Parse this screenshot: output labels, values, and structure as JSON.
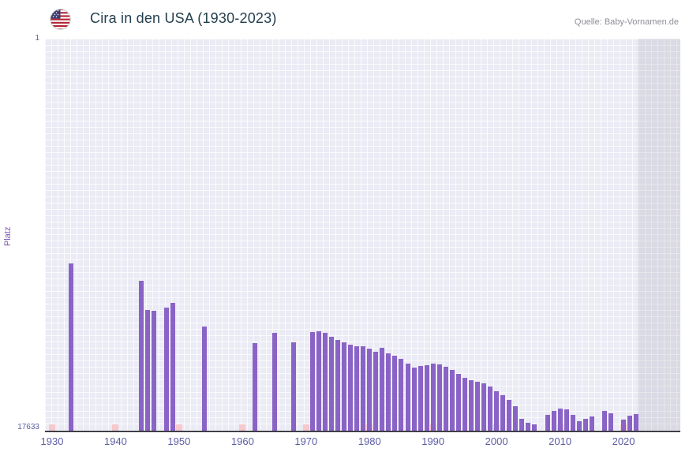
{
  "header": {
    "title": "Cira in den USA (1930-2023)",
    "source": "Quelle: Baby-Vornamen.de",
    "flag_icon": "us-flag-icon"
  },
  "chart_data": {
    "type": "bar",
    "title": "Cira in den USA (1930-2023)",
    "xlabel": "",
    "ylabel": "Platz",
    "y_axis": {
      "top_label": "1",
      "bottom_label": "17633",
      "min": 1,
      "max": 17633,
      "inverted": true,
      "note": "rank 1 is best (top of axis); bars rise from bottom, taller bar = better rank"
    },
    "x_range": [
      1930,
      2023
    ],
    "x_ticks": [
      "1930",
      "1940",
      "1950",
      "1960",
      "1970",
      "1980",
      "1990",
      "2000",
      "2010",
      "2020"
    ],
    "bar_color": "#8a63c6",
    "missing_marker_color": "#f5c9ce",
    "grid": true,
    "legend": false,
    "points": [
      {
        "year": 1933,
        "rank": 10100
      },
      {
        "year": 1944,
        "rank": 10900
      },
      {
        "year": 1945,
        "rank": 12200
      },
      {
        "year": 1946,
        "rank": 12250
      },
      {
        "year": 1948,
        "rank": 12100
      },
      {
        "year": 1949,
        "rank": 11900
      },
      {
        "year": 1954,
        "rank": 12950
      },
      {
        "year": 1962,
        "rank": 13700
      },
      {
        "year": 1965,
        "rank": 13250
      },
      {
        "year": 1968,
        "rank": 13650
      },
      {
        "year": 1971,
        "rank": 13200
      },
      {
        "year": 1972,
        "rank": 13150
      },
      {
        "year": 1973,
        "rank": 13250
      },
      {
        "year": 1974,
        "rank": 13400
      },
      {
        "year": 1975,
        "rank": 13550
      },
      {
        "year": 1976,
        "rank": 13650
      },
      {
        "year": 1977,
        "rank": 13750
      },
      {
        "year": 1978,
        "rank": 13850
      },
      {
        "year": 1979,
        "rank": 13820
      },
      {
        "year": 1980,
        "rank": 13950
      },
      {
        "year": 1981,
        "rank": 14100
      },
      {
        "year": 1982,
        "rank": 13920
      },
      {
        "year": 1983,
        "rank": 14150
      },
      {
        "year": 1984,
        "rank": 14250
      },
      {
        "year": 1985,
        "rank": 14400
      },
      {
        "year": 1986,
        "rank": 14600
      },
      {
        "year": 1987,
        "rank": 14780
      },
      {
        "year": 1988,
        "rank": 14720
      },
      {
        "year": 1989,
        "rank": 14680
      },
      {
        "year": 1990,
        "rank": 14600
      },
      {
        "year": 1991,
        "rank": 14650
      },
      {
        "year": 1992,
        "rank": 14750
      },
      {
        "year": 1993,
        "rank": 14900
      },
      {
        "year": 1994,
        "rank": 15080
      },
      {
        "year": 1995,
        "rank": 15250
      },
      {
        "year": 1996,
        "rank": 15350
      },
      {
        "year": 1997,
        "rank": 15420
      },
      {
        "year": 1998,
        "rank": 15500
      },
      {
        "year": 1999,
        "rank": 15650
      },
      {
        "year": 2000,
        "rank": 15850
      },
      {
        "year": 2001,
        "rank": 16050
      },
      {
        "year": 2002,
        "rank": 16250
      },
      {
        "year": 2003,
        "rank": 16550
      },
      {
        "year": 2004,
        "rank": 17100
      },
      {
        "year": 2005,
        "rank": 17280
      },
      {
        "year": 2006,
        "rank": 17350
      },
      {
        "year": 2008,
        "rank": 16920
      },
      {
        "year": 2009,
        "rank": 16750
      },
      {
        "year": 2010,
        "rank": 16640
      },
      {
        "year": 2011,
        "rank": 16660
      },
      {
        "year": 2012,
        "rank": 16920
      },
      {
        "year": 2013,
        "rank": 17200
      },
      {
        "year": 2014,
        "rank": 17100
      },
      {
        "year": 2015,
        "rank": 16990
      },
      {
        "year": 2017,
        "rank": 16750
      },
      {
        "year": 2018,
        "rank": 16850
      },
      {
        "year": 2020,
        "rank": 17150
      },
      {
        "year": 2021,
        "rank": 16950
      },
      {
        "year": 2022,
        "rank": 16900
      }
    ]
  }
}
